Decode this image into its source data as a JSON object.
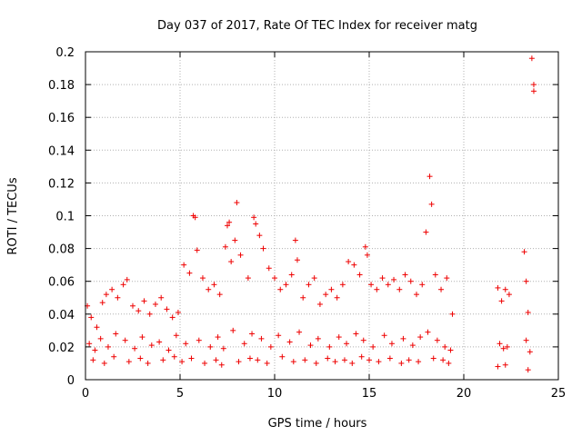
{
  "chart_data": {
    "type": "scatter",
    "title": "Day 037 of 2017, Rate Of TEC Index for receiver matg",
    "xlabel": "GPS time / hours",
    "ylabel": "ROTI / TECUs",
    "xlim": [
      0,
      25
    ],
    "ylim": [
      0,
      0.2
    ],
    "grid": true,
    "marker": "+",
    "color": "#ee0000",
    "x_ticks": [
      0,
      5,
      10,
      15,
      20,
      25
    ],
    "x_tick_labels": [
      "0",
      "5",
      "10",
      "15",
      "20",
      "25"
    ],
    "y_ticks": [
      0,
      0.02,
      0.04,
      0.06,
      0.08,
      0.1,
      0.12,
      0.14,
      0.16,
      0.18,
      0.2
    ],
    "y_tick_labels": [
      "0",
      "0.02",
      "0.04",
      "0.06",
      "0.08",
      "0.1",
      "0.12",
      "0.14",
      "0.16",
      "0.18",
      "0.2"
    ],
    "series": [
      {
        "name": "ROTI",
        "x": [
          0.1,
          0.3,
          0.6,
          0.9,
          1.1,
          1.4,
          1.7,
          2.0,
          2.2,
          2.5,
          2.8,
          3.1,
          3.4,
          3.7,
          4.0,
          4.3,
          4.6,
          4.9,
          5.2,
          5.5,
          5.7,
          5.8,
          5.9,
          6.2,
          6.5,
          6.8,
          7.1,
          7.4,
          7.5,
          7.6,
          7.7,
          7.9,
          8.0,
          8.2,
          8.6,
          8.9,
          9.0,
          9.2,
          9.4,
          9.7,
          10.0,
          10.3,
          10.6,
          10.9,
          11.1,
          11.2,
          11.5,
          11.8,
          12.1,
          12.4,
          12.7,
          13.0,
          13.3,
          13.6,
          13.9,
          14.2,
          14.5,
          14.8,
          14.9,
          15.1,
          15.4,
          15.7,
          16.0,
          16.3,
          16.6,
          16.9,
          17.2,
          17.5,
          17.8,
          18.0,
          18.2,
          18.3,
          18.5,
          18.8,
          19.1,
          19.4,
          21.8,
          22.0,
          22.2,
          22.4,
          23.2,
          23.3,
          23.4,
          23.6,
          23.7,
          23.7,
          0.2,
          0.5,
          0.8,
          1.2,
          1.6,
          2.1,
          2.6,
          3.0,
          3.5,
          3.9,
          4.4,
          4.8,
          5.3,
          6.0,
          6.6,
          7.0,
          7.3,
          7.8,
          8.4,
          8.8,
          9.3,
          9.8,
          10.2,
          10.8,
          11.3,
          11.9,
          12.3,
          12.9,
          13.4,
          13.8,
          14.3,
          14.7,
          15.2,
          15.8,
          16.2,
          16.8,
          17.3,
          17.7,
          18.1,
          18.6,
          19.0,
          19.3,
          21.9,
          22.1,
          22.3,
          23.3,
          23.5,
          0.4,
          1.0,
          1.5,
          2.3,
          2.9,
          3.3,
          4.1,
          4.7,
          5.1,
          5.6,
          6.3,
          6.9,
          7.2,
          8.1,
          8.7,
          9.1,
          9.6,
          10.4,
          11.0,
          11.6,
          12.2,
          12.8,
          13.2,
          13.7,
          14.1,
          14.6,
          15.0,
          15.5,
          16.1,
          16.7,
          17.1,
          17.6,
          18.4,
          18.9,
          19.2,
          21.8,
          22.2,
          23.4
        ],
        "y": [
          0.045,
          0.038,
          0.032,
          0.047,
          0.052,
          0.055,
          0.05,
          0.058,
          0.061,
          0.045,
          0.042,
          0.048,
          0.04,
          0.046,
          0.05,
          0.043,
          0.038,
          0.041,
          0.07,
          0.065,
          0.1,
          0.099,
          0.079,
          0.062,
          0.055,
          0.058,
          0.052,
          0.081,
          0.094,
          0.096,
          0.072,
          0.085,
          0.108,
          0.076,
          0.062,
          0.099,
          0.095,
          0.088,
          0.08,
          0.068,
          0.062,
          0.055,
          0.058,
          0.064,
          0.085,
          0.073,
          0.05,
          0.058,
          0.062,
          0.046,
          0.052,
          0.055,
          0.05,
          0.058,
          0.072,
          0.07,
          0.064,
          0.081,
          0.076,
          0.058,
          0.055,
          0.062,
          0.058,
          0.061,
          0.055,
          0.064,
          0.06,
          0.052,
          0.058,
          0.09,
          0.124,
          0.107,
          0.064,
          0.055,
          0.062,
          0.04,
          0.056,
          0.048,
          0.055,
          0.052,
          0.078,
          0.06,
          0.041,
          0.196,
          0.18,
          0.176,
          0.022,
          0.018,
          0.025,
          0.02,
          0.028,
          0.024,
          0.019,
          0.026,
          0.021,
          0.023,
          0.018,
          0.027,
          0.022,
          0.024,
          0.02,
          0.026,
          0.019,
          0.03,
          0.022,
          0.028,
          0.025,
          0.02,
          0.027,
          0.023,
          0.029,
          0.021,
          0.025,
          0.02,
          0.026,
          0.022,
          0.028,
          0.024,
          0.02,
          0.027,
          0.022,
          0.025,
          0.021,
          0.026,
          0.029,
          0.024,
          0.02,
          0.018,
          0.022,
          0.019,
          0.02,
          0.024,
          0.017,
          0.012,
          0.01,
          0.014,
          0.011,
          0.013,
          0.01,
          0.012,
          0.014,
          0.011,
          0.013,
          0.01,
          0.012,
          0.009,
          0.011,
          0.013,
          0.012,
          0.01,
          0.014,
          0.011,
          0.012,
          0.01,
          0.013,
          0.011,
          0.012,
          0.01,
          0.014,
          0.012,
          0.011,
          0.013,
          0.01,
          0.012,
          0.011,
          0.013,
          0.012,
          0.01,
          0.008,
          0.009,
          0.006
        ]
      }
    ]
  }
}
